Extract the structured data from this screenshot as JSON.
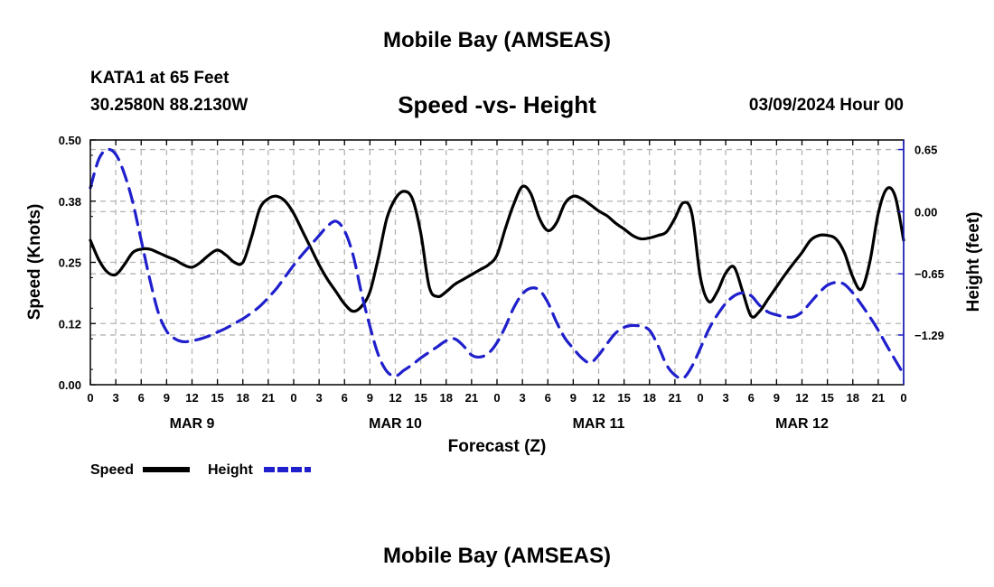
{
  "header": {
    "top_title": "Mobile Bay (AMSEAS)",
    "station": "KATA1 at 65 Feet",
    "coords": "30.2580N  88.2130W",
    "forecast_start": "03/09/2024 Hour 00",
    "bottom_title": "Mobile Bay (AMSEAS)"
  },
  "colors": {
    "speed": "#000000",
    "height": "#1f1fcc",
    "grid": "#b4b4b4"
  },
  "chart_data": {
    "type": "line",
    "title": "Speed -vs- Height",
    "xlabel": "Forecast (Z)",
    "ylabel": "Speed (Knots)",
    "y2label": "Height (feet)",
    "x_range": [
      0,
      96
    ],
    "ylim": [
      0,
      0.5
    ],
    "y2lim": [
      -1.81,
      0.75
    ],
    "y_ticks": [
      "0.00",
      "0.12",
      "0.25",
      "0.38",
      "0.50"
    ],
    "y2_ticks": [
      {
        "value": 0.65,
        "label": "0.65"
      },
      {
        "value": 0.0,
        "label": "0.00"
      },
      {
        "value": -0.65,
        "label": "−0.65"
      },
      {
        "value": -1.29,
        "label": "−1.29"
      }
    ],
    "x_ticks": [
      "0",
      "3",
      "6",
      "9",
      "12",
      "15",
      "18",
      "21",
      "0",
      "3",
      "6",
      "9",
      "12",
      "15",
      "18",
      "21",
      "0",
      "3",
      "6",
      "9",
      "12",
      "15",
      "18",
      "21",
      "0",
      "3",
      "6",
      "9",
      "12",
      "15",
      "18",
      "21",
      "0"
    ],
    "day_labels": [
      {
        "hour": 12,
        "label": "MAR 9"
      },
      {
        "hour": 36,
        "label": "MAR 10"
      },
      {
        "hour": 60,
        "label": "MAR 11"
      },
      {
        "hour": 84,
        "label": "MAR 12"
      }
    ],
    "series": [
      {
        "name": "Speed",
        "axis": "left",
        "style": "solid",
        "x": [
          0,
          1,
          2,
          3,
          4,
          5,
          6,
          7,
          8,
          9,
          10,
          11,
          12,
          13,
          14,
          15,
          16,
          17,
          18,
          19,
          20,
          21,
          22,
          23,
          24,
          25,
          26,
          27,
          28,
          29,
          30,
          31,
          32,
          33,
          34,
          35,
          36,
          37,
          38,
          39,
          40,
          41,
          42,
          43,
          44,
          45,
          46,
          47,
          48,
          49,
          50,
          51,
          52,
          53,
          54,
          55,
          56,
          57,
          58,
          59,
          60,
          61,
          62,
          63,
          64,
          65,
          66,
          67,
          68,
          69,
          70,
          71,
          72,
          73,
          74,
          75,
          76,
          77,
          78,
          79,
          80,
          81,
          82,
          83,
          84,
          85,
          86,
          87,
          88,
          89,
          90,
          91,
          92,
          93,
          94,
          95,
          96
        ],
        "values": [
          0.295,
          0.255,
          0.23,
          0.225,
          0.245,
          0.27,
          0.277,
          0.277,
          0.27,
          0.262,
          0.255,
          0.245,
          0.24,
          0.25,
          0.265,
          0.275,
          0.265,
          0.25,
          0.25,
          0.3,
          0.36,
          0.38,
          0.385,
          0.375,
          0.35,
          0.315,
          0.28,
          0.245,
          0.215,
          0.19,
          0.165,
          0.15,
          0.16,
          0.19,
          0.26,
          0.34,
          0.38,
          0.395,
          0.38,
          0.31,
          0.2,
          0.18,
          0.19,
          0.205,
          0.215,
          0.225,
          0.235,
          0.245,
          0.265,
          0.32,
          0.37,
          0.405,
          0.39,
          0.34,
          0.315,
          0.33,
          0.37,
          0.385,
          0.38,
          0.368,
          0.355,
          0.345,
          0.33,
          0.318,
          0.305,
          0.298,
          0.3,
          0.305,
          0.312,
          0.34,
          0.372,
          0.35,
          0.22,
          0.17,
          0.19,
          0.228,
          0.24,
          0.19,
          0.14,
          0.15,
          0.175,
          0.2,
          0.225,
          0.248,
          0.27,
          0.295,
          0.305,
          0.305,
          0.298,
          0.27,
          0.22,
          0.195,
          0.25,
          0.35,
          0.4,
          0.385,
          0.295
        ]
      },
      {
        "name": "Height",
        "axis": "right",
        "style": "dashed",
        "x": [
          0,
          1,
          2,
          3,
          4,
          5,
          6,
          7,
          8,
          9,
          10,
          11,
          12,
          13,
          14,
          15,
          16,
          17,
          18,
          19,
          20,
          21,
          22,
          23,
          24,
          25,
          26,
          27,
          28,
          29,
          30,
          31,
          32,
          33,
          34,
          35,
          36,
          37,
          38,
          39,
          40,
          41,
          42,
          43,
          44,
          45,
          46,
          47,
          48,
          49,
          50,
          51,
          52,
          53,
          54,
          55,
          56,
          57,
          58,
          59,
          60,
          61,
          62,
          63,
          64,
          65,
          66,
          67,
          68,
          69,
          70,
          71,
          72,
          73,
          74,
          75,
          76,
          77,
          78,
          79,
          80,
          81,
          82,
          83,
          84,
          85,
          86,
          87,
          88,
          89,
          90,
          91,
          92,
          93,
          94,
          95,
          96
        ],
        "values": [
          0.25,
          0.55,
          0.65,
          0.6,
          0.4,
          0.1,
          -0.3,
          -0.7,
          -1.05,
          -1.25,
          -1.33,
          -1.36,
          -1.35,
          -1.33,
          -1.3,
          -1.26,
          -1.22,
          -1.17,
          -1.12,
          -1.06,
          -0.99,
          -0.9,
          -0.8,
          -0.68,
          -0.56,
          -0.45,
          -0.35,
          -0.25,
          -0.15,
          -0.1,
          -0.2,
          -0.45,
          -0.85,
          -1.2,
          -1.5,
          -1.67,
          -1.72,
          -1.66,
          -1.6,
          -1.53,
          -1.47,
          -1.41,
          -1.35,
          -1.33,
          -1.4,
          -1.5,
          -1.52,
          -1.48,
          -1.37,
          -1.2,
          -1.0,
          -0.86,
          -0.8,
          -0.82,
          -0.95,
          -1.15,
          -1.32,
          -1.43,
          -1.53,
          -1.58,
          -1.5,
          -1.38,
          -1.27,
          -1.21,
          -1.19,
          -1.2,
          -1.24,
          -1.4,
          -1.6,
          -1.71,
          -1.74,
          -1.62,
          -1.43,
          -1.23,
          -1.08,
          -0.96,
          -0.88,
          -0.85,
          -0.88,
          -0.98,
          -1.05,
          -1.08,
          -1.1,
          -1.1,
          -1.05,
          -0.95,
          -0.85,
          -0.77,
          -0.74,
          -0.76,
          -0.85,
          -0.97,
          -1.1,
          -1.24,
          -1.4,
          -1.55,
          -1.7
        ]
      }
    ],
    "legend": [
      {
        "label": "Speed",
        "style": "solid"
      },
      {
        "label": "Height",
        "style": "dashed"
      }
    ],
    "grid": true,
    "legend_position": "bottom-left"
  }
}
